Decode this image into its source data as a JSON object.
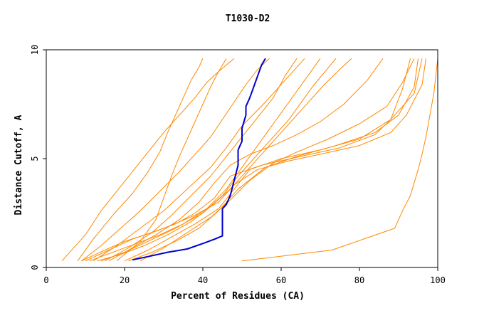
{
  "chart_data": {
    "type": "line",
    "title": "T1030-D2",
    "xlabel": "Percent of Residues (CA)",
    "ylabel": "Distance Cutoff, A",
    "xlim": [
      0,
      100
    ],
    "ylim": [
      0,
      10
    ],
    "xticks": [
      "0",
      "20",
      "40",
      "60",
      "80",
      "100"
    ],
    "yticks": [
      "0",
      "5",
      "10"
    ],
    "grid": false,
    "colors": {
      "highlight": "#0000cc",
      "others": "#ff8800"
    },
    "highlighted_series": {
      "x": [
        22,
        26,
        31,
        36,
        40,
        43,
        45,
        45,
        45,
        46,
        47,
        48,
        49,
        49,
        50,
        50,
        51,
        51,
        52,
        53,
        54,
        55,
        56
      ],
      "y": [
        0.35,
        0.5,
        0.7,
        0.85,
        1.1,
        1.3,
        1.45,
        2.2,
        2.7,
        2.9,
        3.3,
        4.0,
        4.7,
        5.4,
        5.8,
        6.4,
        7.0,
        7.4,
        7.8,
        8.3,
        8.8,
        9.3,
        9.6
      ]
    },
    "other_series_samples": [
      {
        "x": [
          50,
          73,
          89,
          91,
          93,
          95,
          96,
          97,
          98,
          99,
          100
        ],
        "y": [
          0.3,
          0.8,
          1.8,
          2.6,
          3.3,
          4.5,
          5.2,
          6.0,
          7.0,
          8.0,
          9.6
        ]
      },
      {
        "x": [
          4,
          10,
          14,
          18,
          22,
          26,
          30,
          34,
          38,
          41,
          44,
          46,
          48
        ],
        "y": [
          0.3,
          1.5,
          2.6,
          3.5,
          4.4,
          5.3,
          6.2,
          7.0,
          7.8,
          8.5,
          9.0,
          9.3,
          9.6
        ]
      },
      {
        "x": [
          9,
          15,
          20,
          27,
          33,
          38,
          43,
          47,
          55,
          65,
          75,
          84,
          88,
          91,
          93
        ],
        "y": [
          0.3,
          0.8,
          1.2,
          1.6,
          2.0,
          2.5,
          3.2,
          4.2,
          4.7,
          5.1,
          5.5,
          6.1,
          6.8,
          8.2,
          9.6
        ]
      },
      {
        "x": [
          10,
          16,
          22,
          30,
          38,
          44,
          48,
          54,
          62,
          70,
          80,
          88,
          92,
          96,
          97
        ],
        "y": [
          0.3,
          0.8,
          1.3,
          1.8,
          2.4,
          3.0,
          3.8,
          4.5,
          4.9,
          5.2,
          5.6,
          6.2,
          7.0,
          8.4,
          9.6
        ]
      },
      {
        "x": [
          12,
          18,
          24,
          30,
          36,
          42,
          46,
          50,
          56,
          62,
          66
        ],
        "y": [
          0.3,
          1.0,
          1.8,
          2.6,
          3.6,
          4.6,
          5.5,
          6.5,
          7.6,
          8.8,
          9.6
        ]
      },
      {
        "x": [
          14,
          20,
          26,
          33,
          40,
          45,
          49,
          55,
          62,
          68,
          74
        ],
        "y": [
          0.3,
          0.7,
          1.2,
          1.8,
          2.5,
          3.3,
          4.2,
          5.4,
          6.8,
          8.3,
          9.6
        ]
      },
      {
        "x": [
          18,
          24,
          28,
          30,
          32,
          34,
          36,
          38,
          40,
          42,
          44,
          46
        ],
        "y": [
          0.3,
          1.2,
          2.2,
          3.2,
          4.2,
          5.1,
          5.9,
          6.7,
          7.5,
          8.3,
          9.0,
          9.6
        ]
      },
      {
        "x": [
          16,
          22,
          28,
          34,
          39,
          43,
          47,
          52,
          58,
          64,
          70,
          76,
          82,
          86
        ],
        "y": [
          0.3,
          0.9,
          1.5,
          2.2,
          3.0,
          3.9,
          4.7,
          5.2,
          5.6,
          6.1,
          6.7,
          7.5,
          8.6,
          9.6
        ]
      },
      {
        "x": [
          8,
          12,
          17,
          22,
          26,
          29,
          31,
          33,
          35,
          37,
          39,
          40
        ],
        "y": [
          0.3,
          1.3,
          2.4,
          3.4,
          4.4,
          5.3,
          6.2,
          7.0,
          7.8,
          8.6,
          9.2,
          9.6
        ]
      },
      {
        "x": [
          11,
          17,
          23,
          29,
          35,
          41,
          46,
          50,
          54,
          58,
          62,
          66,
          70
        ],
        "y": [
          0.3,
          0.7,
          1.1,
          1.5,
          2.0,
          2.7,
          3.6,
          4.6,
          5.6,
          6.6,
          7.6,
          8.6,
          9.6
        ]
      },
      {
        "x": [
          20,
          26,
          32,
          38,
          44,
          48,
          52,
          60,
          70,
          80,
          88,
          94,
          96
        ],
        "y": [
          0.3,
          0.8,
          1.4,
          2.0,
          2.7,
          3.6,
          4.5,
          5.0,
          5.4,
          5.9,
          6.8,
          8.0,
          9.6
        ]
      },
      {
        "x": [
          13,
          19,
          25,
          31,
          37,
          42,
          47,
          51,
          55,
          59,
          63,
          67,
          71,
          75,
          78
        ],
        "y": [
          0.3,
          0.6,
          1.0,
          1.5,
          2.1,
          2.8,
          3.6,
          4.4,
          5.2,
          6.0,
          6.8,
          7.6,
          8.4,
          9.1,
          9.6
        ]
      },
      {
        "x": [
          24,
          30,
          36,
          42,
          47,
          52,
          58,
          64,
          72,
          80,
          87,
          91,
          94
        ],
        "y": [
          0.3,
          0.9,
          1.6,
          2.3,
          3.1,
          4.0,
          4.8,
          5.3,
          5.9,
          6.6,
          7.4,
          8.5,
          9.6
        ]
      },
      {
        "x": [
          15,
          21,
          27,
          32,
          37,
          42,
          46,
          50,
          54,
          58,
          61,
          64
        ],
        "y": [
          0.3,
          0.9,
          1.6,
          2.4,
          3.3,
          4.2,
          5.1,
          6.0,
          6.9,
          7.8,
          8.8,
          9.6
        ]
      },
      {
        "x": [
          9,
          14,
          19,
          24,
          29,
          34,
          38,
          42,
          45,
          48,
          51,
          54,
          57
        ],
        "y": [
          0.3,
          1.0,
          1.8,
          2.6,
          3.5,
          4.4,
          5.2,
          6.0,
          6.8,
          7.6,
          8.4,
          9.1,
          9.6
        ]
      },
      {
        "x": [
          21,
          27,
          33,
          39,
          44,
          49,
          56,
          64,
          74,
          84,
          90,
          94,
          95
        ],
        "y": [
          0.3,
          0.7,
          1.2,
          1.8,
          2.6,
          3.6,
          4.6,
          5.1,
          5.6,
          6.2,
          7.0,
          8.3,
          9.6
        ]
      }
    ]
  }
}
